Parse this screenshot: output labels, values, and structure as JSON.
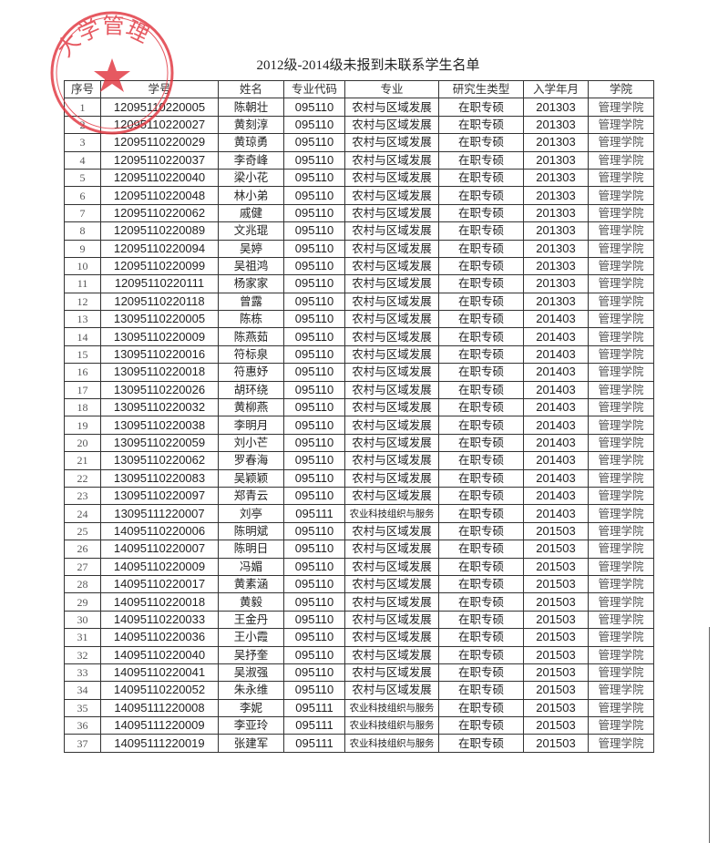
{
  "title": "2012级-2014级未报到未联系学生名单",
  "stamp": {
    "text": "大学管理",
    "color": "#e0303a"
  },
  "table": {
    "headers": [
      "序号",
      "学号",
      "姓名",
      "专业代码",
      "专业",
      "研究生类型",
      "入学年月",
      "学院"
    ],
    "rows": [
      [
        "1",
        "12095110220005",
        "陈朝壮",
        "095110",
        "农村与区域发展",
        "在职专硕",
        "201303",
        "管理学院"
      ],
      [
        "2",
        "12095110220027",
        "黄刻淳",
        "095110",
        "农村与区域发展",
        "在职专硕",
        "201303",
        "管理学院"
      ],
      [
        "3",
        "12095110220029",
        "黄琼勇",
        "095110",
        "农村与区域发展",
        "在职专硕",
        "201303",
        "管理学院"
      ],
      [
        "4",
        "12095110220037",
        "李奇峰",
        "095110",
        "农村与区域发展",
        "在职专硕",
        "201303",
        "管理学院"
      ],
      [
        "5",
        "12095110220040",
        "梁小花",
        "095110",
        "农村与区域发展",
        "在职专硕",
        "201303",
        "管理学院"
      ],
      [
        "6",
        "12095110220048",
        "林小弟",
        "095110",
        "农村与区域发展",
        "在职专硕",
        "201303",
        "管理学院"
      ],
      [
        "7",
        "12095110220062",
        "戚健",
        "095110",
        "农村与区域发展",
        "在职专硕",
        "201303",
        "管理学院"
      ],
      [
        "8",
        "12095110220089",
        "文兆琨",
        "095110",
        "农村与区域发展",
        "在职专硕",
        "201303",
        "管理学院"
      ],
      [
        "9",
        "12095110220094",
        "吴婷",
        "095110",
        "农村与区域发展",
        "在职专硕",
        "201303",
        "管理学院"
      ],
      [
        "10",
        "12095110220099",
        "吴祖鸿",
        "095110",
        "农村与区域发展",
        "在职专硕",
        "201303",
        "管理学院"
      ],
      [
        "11",
        "12095110220111",
        "杨家家",
        "095110",
        "农村与区域发展",
        "在职专硕",
        "201303",
        "管理学院"
      ],
      [
        "12",
        "12095110220118",
        "曾露",
        "095110",
        "农村与区域发展",
        "在职专硕",
        "201303",
        "管理学院"
      ],
      [
        "13",
        "13095110220005",
        "陈栋",
        "095110",
        "农村与区域发展",
        "在职专硕",
        "201403",
        "管理学院"
      ],
      [
        "14",
        "13095110220009",
        "陈燕茹",
        "095110",
        "农村与区域发展",
        "在职专硕",
        "201403",
        "管理学院"
      ],
      [
        "15",
        "13095110220016",
        "符标泉",
        "095110",
        "农村与区域发展",
        "在职专硕",
        "201403",
        "管理学院"
      ],
      [
        "16",
        "13095110220018",
        "符惠妤",
        "095110",
        "农村与区域发展",
        "在职专硕",
        "201403",
        "管理学院"
      ],
      [
        "17",
        "13095110220026",
        "胡环绕",
        "095110",
        "农村与区域发展",
        "在职专硕",
        "201403",
        "管理学院"
      ],
      [
        "18",
        "13095110220032",
        "黄柳燕",
        "095110",
        "农村与区域发展",
        "在职专硕",
        "201403",
        "管理学院"
      ],
      [
        "19",
        "13095110220038",
        "李明月",
        "095110",
        "农村与区域发展",
        "在职专硕",
        "201403",
        "管理学院"
      ],
      [
        "20",
        "13095110220059",
        "刘小芒",
        "095110",
        "农村与区域发展",
        "在职专硕",
        "201403",
        "管理学院"
      ],
      [
        "21",
        "13095110220062",
        "罗春海",
        "095110",
        "农村与区域发展",
        "在职专硕",
        "201403",
        "管理学院"
      ],
      [
        "22",
        "13095110220083",
        "吴颖颖",
        "095110",
        "农村与区域发展",
        "在职专硕",
        "201403",
        "管理学院"
      ],
      [
        "23",
        "13095110220097",
        "郑青云",
        "095110",
        "农村与区域发展",
        "在职专硕",
        "201403",
        "管理学院"
      ],
      [
        "24",
        "13095111220007",
        "刘亭",
        "095111",
        "农业科技组织与服务",
        "在职专硕",
        "201403",
        "管理学院"
      ],
      [
        "25",
        "14095110220006",
        "陈明斌",
        "095110",
        "农村与区域发展",
        "在职专硕",
        "201503",
        "管理学院"
      ],
      [
        "26",
        "14095110220007",
        "陈明日",
        "095110",
        "农村与区域发展",
        "在职专硕",
        "201503",
        "管理学院"
      ],
      [
        "27",
        "14095110220009",
        "冯媚",
        "095110",
        "农村与区域发展",
        "在职专硕",
        "201503",
        "管理学院"
      ],
      [
        "28",
        "14095110220017",
        "黄素涵",
        "095110",
        "农村与区域发展",
        "在职专硕",
        "201503",
        "管理学院"
      ],
      [
        "29",
        "14095110220018",
        "黄毅",
        "095110",
        "农村与区域发展",
        "在职专硕",
        "201503",
        "管理学院"
      ],
      [
        "30",
        "14095110220033",
        "王金丹",
        "095110",
        "农村与区域发展",
        "在职专硕",
        "201503",
        "管理学院"
      ],
      [
        "31",
        "14095110220036",
        "王小霞",
        "095110",
        "农村与区域发展",
        "在职专硕",
        "201503",
        "管理学院"
      ],
      [
        "32",
        "14095110220040",
        "吴抒奎",
        "095110",
        "农村与区域发展",
        "在职专硕",
        "201503",
        "管理学院"
      ],
      [
        "33",
        "14095110220041",
        "吴淑强",
        "095110",
        "农村与区域发展",
        "在职专硕",
        "201503",
        "管理学院"
      ],
      [
        "34",
        "14095110220052",
        "朱永维",
        "095110",
        "农村与区域发展",
        "在职专硕",
        "201503",
        "管理学院"
      ],
      [
        "35",
        "14095111220008",
        "李妮",
        "095111",
        "农业科技组织与服务",
        "在职专硕",
        "201503",
        "管理学院"
      ],
      [
        "36",
        "14095111220009",
        "李亚玲",
        "095111",
        "农业科技组织与服务",
        "在职专硕",
        "201503",
        "管理学院"
      ],
      [
        "37",
        "14095111220019",
        "张建军",
        "095111",
        "农业科技组织与服务",
        "在职专硕",
        "201503",
        "管理学院"
      ]
    ]
  }
}
